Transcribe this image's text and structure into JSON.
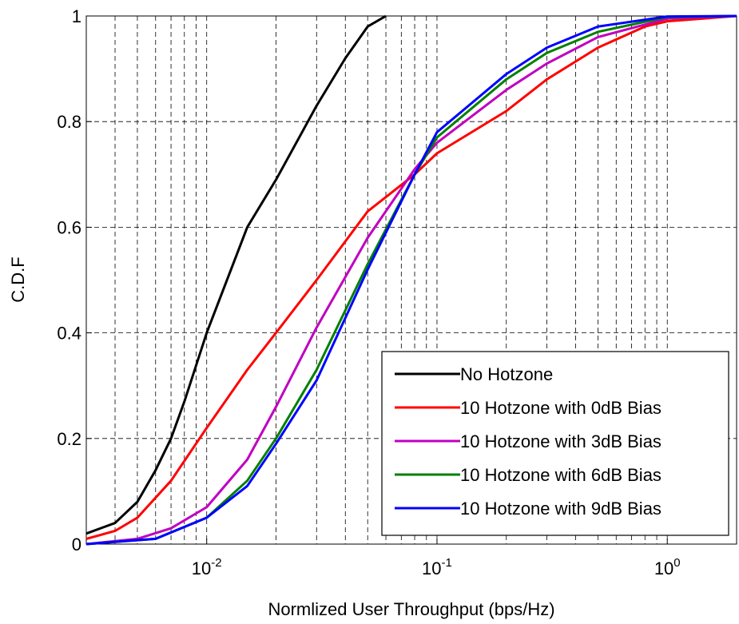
{
  "chart_data": {
    "type": "line",
    "xlabel": "Normlized User Throughput (bps/Hz)",
    "ylabel": "C.D.F",
    "xscale": "log",
    "xlim": [
      0.003,
      2
    ],
    "ylim": [
      0,
      1
    ],
    "xticks": [
      {
        "value": 0.01,
        "label": "10",
        "exponent": "-2"
      },
      {
        "value": 0.1,
        "label": "10",
        "exponent": "-1"
      },
      {
        "value": 1,
        "label": "10",
        "exponent": "0"
      }
    ],
    "yticks": [
      0,
      0.2,
      0.4,
      0.6,
      0.8,
      1
    ],
    "grid": true,
    "minor_grid": true,
    "legend": "lower right",
    "series": [
      {
        "name": "No Hotzone",
        "color": "#000000",
        "x": [
          0.003,
          0.004,
          0.005,
          0.006,
          0.007,
          0.008,
          0.01,
          0.015,
          0.02,
          0.03,
          0.04,
          0.05,
          0.06
        ],
        "values": [
          0.02,
          0.04,
          0.08,
          0.14,
          0.2,
          0.27,
          0.4,
          0.6,
          0.69,
          0.83,
          0.92,
          0.98,
          1.0
        ]
      },
      {
        "name": "10 Hotzone with 0dB Bias",
        "color": "#ff0000",
        "x": [
          0.003,
          0.004,
          0.005,
          0.007,
          0.01,
          0.015,
          0.02,
          0.03,
          0.05,
          0.08,
          0.1,
          0.2,
          0.3,
          0.5,
          0.8,
          1,
          2
        ],
        "values": [
          0.01,
          0.025,
          0.05,
          0.12,
          0.22,
          0.33,
          0.4,
          0.5,
          0.63,
          0.7,
          0.74,
          0.82,
          0.88,
          0.94,
          0.98,
          0.99,
          1.0
        ]
      },
      {
        "name": "10 Hotzone with 3dB Bias",
        "color": "#c000c0",
        "x": [
          0.003,
          0.005,
          0.007,
          0.01,
          0.015,
          0.02,
          0.03,
          0.05,
          0.08,
          0.1,
          0.2,
          0.3,
          0.5,
          1,
          2
        ],
        "values": [
          0.0,
          0.01,
          0.03,
          0.07,
          0.16,
          0.26,
          0.41,
          0.58,
          0.71,
          0.76,
          0.86,
          0.91,
          0.96,
          0.995,
          1.0
        ]
      },
      {
        "name": "10 Hotzone with 6dB Bias",
        "color": "#008000",
        "x": [
          0.003,
          0.006,
          0.01,
          0.015,
          0.02,
          0.03,
          0.05,
          0.08,
          0.1,
          0.2,
          0.3,
          0.5,
          1,
          2
        ],
        "values": [
          0.0,
          0.01,
          0.05,
          0.12,
          0.2,
          0.33,
          0.53,
          0.7,
          0.77,
          0.88,
          0.93,
          0.97,
          0.998,
          1.0
        ]
      },
      {
        "name": "10 Hotzone with 9dB Bias",
        "color": "#0000ff",
        "x": [
          0.003,
          0.006,
          0.01,
          0.015,
          0.02,
          0.03,
          0.05,
          0.08,
          0.1,
          0.2,
          0.3,
          0.5,
          1,
          2
        ],
        "values": [
          0.0,
          0.01,
          0.05,
          0.11,
          0.19,
          0.31,
          0.52,
          0.7,
          0.78,
          0.89,
          0.94,
          0.98,
          0.999,
          1.0
        ]
      }
    ]
  }
}
